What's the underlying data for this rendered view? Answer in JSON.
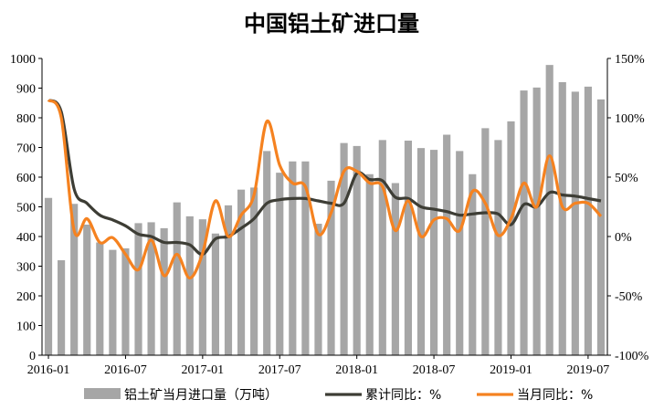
{
  "chart_data": {
    "type": "bar",
    "title": "中国铝土矿进口量",
    "colors": {
      "bar": "#a6a6a6",
      "cumulative": "#3d3d35",
      "monthly": "#f58220"
    },
    "y_left": {
      "min": 0,
      "max": 1000,
      "ticks": [
        0,
        100,
        200,
        300,
        400,
        500,
        600,
        700,
        800,
        900,
        1000
      ]
    },
    "y_right": {
      "min": -100,
      "max": 150,
      "ticks": [
        "-100%",
        "-50%",
        "0%",
        "50%",
        "100%",
        "150%"
      ],
      "tick_values": [
        -100,
        -50,
        0,
        50,
        100,
        150
      ]
    },
    "x_tick_labels": [
      "2016-01",
      "2016-07",
      "2017-01",
      "2017-07",
      "2018-01",
      "2018-07",
      "2019-01",
      "2019-07"
    ],
    "categories": [
      "2016-01",
      "2016-02",
      "2016-03",
      "2016-04",
      "2016-05",
      "2016-06",
      "2016-07",
      "2016-08",
      "2016-09",
      "2016-10",
      "2016-11",
      "2016-12",
      "2017-01",
      "2017-02",
      "2017-03",
      "2017-04",
      "2017-05",
      "2017-06",
      "2017-07",
      "2017-08",
      "2017-09",
      "2017-10",
      "2017-11",
      "2017-12",
      "2018-01",
      "2018-02",
      "2018-03",
      "2018-04",
      "2018-05",
      "2018-06",
      "2018-07",
      "2018-08",
      "2018-09",
      "2018-10",
      "2018-11",
      "2018-12",
      "2019-01",
      "2019-02",
      "2019-03",
      "2019-04",
      "2019-05",
      "2019-06",
      "2019-07",
      "2019-08"
    ],
    "series": [
      {
        "name": "铝土矿当月进口量（万吨）",
        "type": "bar",
        "axis": "left",
        "values": [
          530,
          320,
          510,
          440,
          380,
          355,
          360,
          445,
          448,
          428,
          515,
          468,
          458,
          410,
          505,
          558,
          565,
          688,
          615,
          653,
          653,
          443,
          588,
          715,
          705,
          610,
          725,
          580,
          723,
          698,
          692,
          743,
          688,
          610,
          765,
          725,
          788,
          892,
          902,
          978,
          920,
          888,
          905,
          862
        ]
      },
      {
        "name": "累计同比：%",
        "type": "line",
        "axis": "right",
        "values": [
          115,
          105,
          40,
          28,
          18,
          14,
          9,
          2,
          0,
          -5,
          -5,
          -7,
          -15,
          -2,
          0,
          7,
          15,
          28,
          31,
          32,
          32,
          30,
          28,
          28,
          53,
          48,
          47,
          33,
          32,
          25,
          23,
          21,
          18,
          19,
          20,
          19,
          10,
          27,
          25,
          37,
          35,
          34,
          32,
          30
        ]
      },
      {
        "name": "当月同比：%",
        "type": "line",
        "axis": "right",
        "values": [
          115,
          100,
          5,
          15,
          -5,
          -1,
          -15,
          -28,
          -3,
          -33,
          -15,
          -35,
          -14,
          30,
          0,
          18,
          35,
          97,
          60,
          45,
          42,
          2,
          20,
          55,
          55,
          45,
          42,
          5,
          30,
          0,
          14,
          15,
          5,
          38,
          28,
          1,
          15,
          45,
          25,
          68,
          25,
          28,
          28,
          17
        ]
      }
    ]
  }
}
